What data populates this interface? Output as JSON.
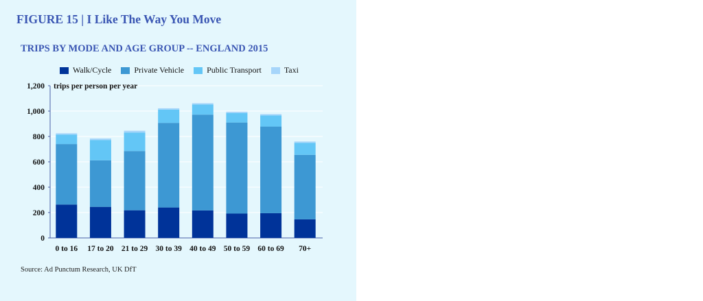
{
  "figure_title": "FIGURE 15 | I Like The Way You Move",
  "source": "Source: Ad Punctum Research, UK DfT",
  "chart_data": {
    "type": "bar",
    "stacked": true,
    "title": "TRIPS BY MODE AND AGE GROUP -- ENGLAND 2015",
    "unit_label": "trips per person per year",
    "categories": [
      "0 to 16",
      "17 to 20",
      "21 to 29",
      "30 to 39",
      "40 to 49",
      "50 to 59",
      "60 to 69",
      "70+"
    ],
    "ylim": [
      0,
      1200
    ],
    "yticks": [
      0,
      200,
      400,
      600,
      800,
      1000,
      1200
    ],
    "ytick_labels": [
      "0",
      "200",
      "400",
      "600",
      "800",
      "1,000",
      "1,200"
    ],
    "legend_position": "top",
    "series": [
      {
        "name": "Walk/Cycle",
        "color": "#003399",
        "values": [
          263,
          245,
          218,
          240,
          217,
          192,
          195,
          147
        ]
      },
      {
        "name": "Private Vehicle",
        "color": "#3d98d3",
        "values": [
          477,
          367,
          467,
          667,
          755,
          718,
          683,
          508
        ]
      },
      {
        "name": "Public Transport",
        "color": "#63c6f6",
        "values": [
          75,
          160,
          145,
          105,
          80,
          75,
          88,
          95
        ]
      },
      {
        "name": "Taxi",
        "color": "#a6d5fa",
        "values": [
          10,
          12,
          15,
          10,
          10,
          10,
          10,
          10
        ]
      }
    ]
  }
}
